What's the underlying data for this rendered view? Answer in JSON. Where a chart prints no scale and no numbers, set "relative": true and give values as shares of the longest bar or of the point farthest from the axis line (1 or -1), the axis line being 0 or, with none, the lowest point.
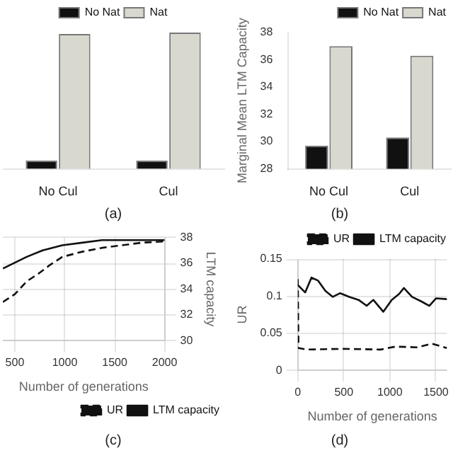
{
  "chart_data": [
    {
      "type": "bar",
      "title": "(a)",
      "relative": true,
      "categories": [
        "No Cul",
        "Cul"
      ],
      "legend": "top",
      "series": [
        {
          "name": "No Nat",
          "color": "#111111",
          "values": [
            0.06,
            0.06
          ]
        },
        {
          "name": "Nat",
          "color": "#d8d8cf",
          "values": [
            0.99,
            1.0
          ]
        }
      ]
    },
    {
      "type": "bar",
      "title": "(b)",
      "ylabel": "Marginal Mean LTM Capacity",
      "categories": [
        "No Cul",
        "Cul"
      ],
      "ylim": [
        28,
        38
      ],
      "yticks": [
        28,
        30,
        32,
        34,
        36,
        38
      ],
      "legend": "top right",
      "series": [
        {
          "name": "No Nat",
          "color": "#111111",
          "values": [
            29.7,
            30.3
          ]
        },
        {
          "name": "Nat",
          "color": "#d8d8cf",
          "values": [
            37.0,
            36.3
          ]
        }
      ]
    },
    {
      "type": "line",
      "title": "(c)",
      "xlabel": "Number of generations",
      "y2label": "LTM capacity",
      "xlim": [
        380,
        2000
      ],
      "xticks": [
        500,
        1000,
        1500,
        2000
      ],
      "y2lim": [
        30,
        38
      ],
      "y2ticks": [
        30,
        32,
        34,
        36,
        38
      ],
      "grid": true,
      "legend": "bottom right",
      "marker": "none",
      "series": [
        {
          "name": "UR",
          "color": "#111111",
          "axis": "y2",
          "line_style": "dashed",
          "x": [
            381,
            500,
            619,
            738,
            857,
            976,
            1175,
            1373,
            1571,
            1770,
            2000
          ],
          "values": [
            33.0,
            33.6,
            34.6,
            35.2,
            35.9,
            36.5,
            36.9,
            37.2,
            37.4,
            37.6,
            37.7
          ]
        },
        {
          "name": "LTM capacity",
          "color": "#111111",
          "axis": "y2",
          "line_style": "solid",
          "x": [
            381,
            619,
            778,
            976,
            1175,
            1373,
            1571,
            1770,
            2000
          ],
          "values": [
            35.6,
            36.5,
            37.0,
            37.4,
            37.6,
            37.8,
            37.8,
            37.8,
            37.8
          ]
        }
      ]
    },
    {
      "type": "line",
      "title": "(d)",
      "xlabel": "Number of generations",
      "ylabel": "UR",
      "xlim": [
        0,
        1620
      ],
      "xticks": [
        0,
        500,
        1000,
        1500
      ],
      "ylim": [
        0,
        0.15
      ],
      "yticks": [
        0,
        0.05,
        0.1,
        0.15
      ],
      "grid": true,
      "legend": "top right",
      "marker": "none",
      "series": [
        {
          "name": "UR",
          "color": "#111111",
          "line_style": "dashed",
          "x": [
            0,
            8,
            100,
            500,
            900,
            1060,
            1300,
            1452,
            1620
          ],
          "values": [
            0.123,
            0.03,
            0.028,
            0.029,
            0.028,
            0.032,
            0.031,
            0.036,
            0.03
          ]
        },
        {
          "name": "LTM capacity",
          "color": "#111111",
          "line_style": "solid",
          "x": [
            0,
            80,
            148,
            220,
            300,
            380,
            460,
            560,
            660,
            748,
            820,
            928,
            1020,
            1100,
            1152,
            1240,
            1340,
            1428,
            1500,
            1620
          ],
          "values": [
            0.115,
            0.105,
            0.125,
            0.121,
            0.107,
            0.099,
            0.104,
            0.099,
            0.095,
            0.087,
            0.095,
            0.079,
            0.095,
            0.103,
            0.111,
            0.099,
            0.093,
            0.087,
            0.097,
            0.096
          ]
        }
      ]
    }
  ]
}
